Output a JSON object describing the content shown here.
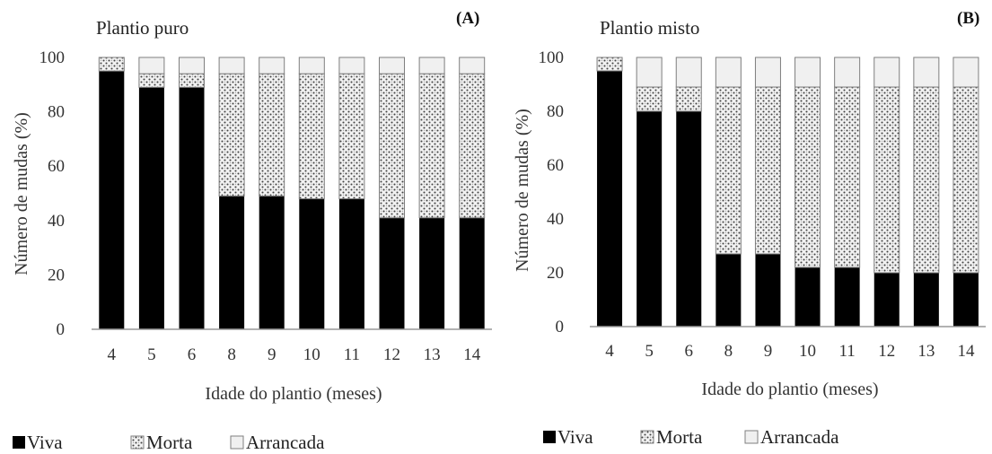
{
  "legend": {
    "items": [
      {
        "label": "Viva",
        "pattern": "solid-black"
      },
      {
        "label": "Morta",
        "pattern": "speckled"
      },
      {
        "label": "Arrancada",
        "pattern": "light-gray"
      }
    ]
  },
  "colors": {
    "viva": "#000000",
    "morta_bg": "#f2f2f2",
    "morta_dots": "#444444",
    "arrancada": "#f0f0f0",
    "outline": "#7f7f7f",
    "axis": "#999999"
  },
  "chart_data": [
    {
      "type": "bar",
      "stacked": true,
      "panel_label": "(A)",
      "title": "Plantio puro",
      "xlabel": "Idade do plantio (meses)",
      "ylabel": "Número de mudas (%)",
      "ylim": [
        0,
        100
      ],
      "yticks": [
        0,
        20,
        40,
        60,
        80,
        100
      ],
      "grid": false,
      "categories": [
        "4",
        "5",
        "6",
        "8",
        "9",
        "10",
        "11",
        "12",
        "13",
        "14"
      ],
      "series": [
        {
          "name": "Viva",
          "values": [
            95,
            89,
            89,
            49,
            49,
            48,
            48,
            41,
            41,
            41
          ]
        },
        {
          "name": "Morta",
          "values": [
            5,
            5,
            5,
            45,
            45,
            46,
            46,
            53,
            53,
            53
          ]
        },
        {
          "name": "Arrancada",
          "values": [
            0,
            6,
            6,
            6,
            6,
            6,
            6,
            6,
            6,
            6
          ]
        }
      ]
    },
    {
      "type": "bar",
      "stacked": true,
      "panel_label": "(B)",
      "title": "Plantio misto",
      "xlabel": "Idade do plantio (meses)",
      "ylabel": "Número de mudas (%)",
      "ylim": [
        0,
        100
      ],
      "yticks": [
        0,
        20,
        40,
        60,
        80,
        100
      ],
      "grid": false,
      "categories": [
        "4",
        "5",
        "6",
        "8",
        "9",
        "10",
        "11",
        "12",
        "13",
        "14"
      ],
      "series": [
        {
          "name": "Viva",
          "values": [
            95,
            80,
            80,
            27,
            27,
            22,
            22,
            20,
            20,
            20
          ]
        },
        {
          "name": "Morta",
          "values": [
            5,
            9,
            9,
            62,
            62,
            67,
            67,
            69,
            69,
            69
          ]
        },
        {
          "name": "Arrancada",
          "values": [
            0,
            11,
            11,
            11,
            11,
            11,
            11,
            11,
            11,
            11
          ]
        }
      ]
    }
  ]
}
